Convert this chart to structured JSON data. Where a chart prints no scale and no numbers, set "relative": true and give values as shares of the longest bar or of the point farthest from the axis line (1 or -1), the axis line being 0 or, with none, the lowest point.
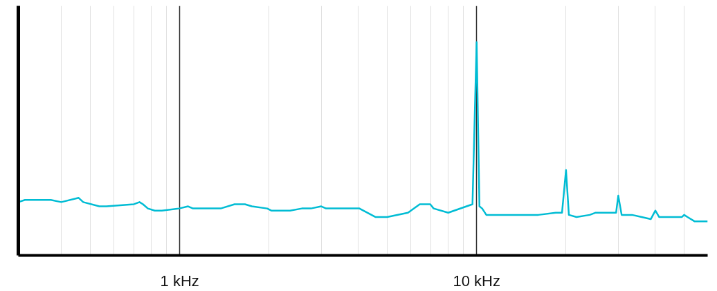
{
  "chart_data": {
    "type": "line",
    "relative": true,
    "log": "x",
    "grid": "x",
    "tick_labels": "x",
    "marker": "none",
    "line_style": "solid",
    "xlim": [
      0.286,
      60
    ],
    "xticks": [
      {
        "value": 0.4,
        "label": null
      },
      {
        "value": 0.5,
        "label": null
      },
      {
        "value": 0.6,
        "label": null
      },
      {
        "value": 0.7,
        "label": null
      },
      {
        "value": 0.8,
        "label": null
      },
      {
        "value": 0.9,
        "label": null
      },
      {
        "value": 1,
        "label": "1 kHz"
      },
      {
        "value": 2,
        "label": null
      },
      {
        "value": 3,
        "label": null
      },
      {
        "value": 4,
        "label": null
      },
      {
        "value": 5,
        "label": null
      },
      {
        "value": 6,
        "label": null
      },
      {
        "value": 7,
        "label": null
      },
      {
        "value": 8,
        "label": null
      },
      {
        "value": 9,
        "label": null
      },
      {
        "value": 10,
        "label": "10 kHz"
      },
      {
        "value": 20,
        "label": null
      },
      {
        "value": 30,
        "label": null
      },
      {
        "value": 40,
        "label": null
      },
      {
        "value": 50,
        "label": null
      }
    ],
    "x": [
      0.286,
      0.301,
      0.336,
      0.368,
      0.399,
      0.456,
      0.473,
      0.536,
      0.566,
      0.701,
      0.732,
      0.752,
      0.781,
      0.824,
      0.87,
      0.995,
      1.067,
      1.108,
      1.374,
      1.53,
      1.658,
      1.75,
      1.97,
      2.034,
      2.352,
      2.578,
      2.765,
      2.997,
      3.112,
      3.303,
      3.485,
      3.88,
      4.029,
      4.559,
      4.995,
      5.871,
      6.433,
      6.976,
      7.165,
      8.022,
      9.683,
      10,
      10.22,
      10.44,
      10.78,
      11.63,
      14.42,
      16.14,
      18.47,
      19.39,
      20,
      20.45,
      21.7,
      24.04,
      25.09,
      27.65,
      29.49,
      30,
      30.79,
      33.38,
      35.98,
      38.59,
      40,
      41.17,
      49.15,
      50,
      51.31,
      54.16,
      60
    ],
    "series": [
      {
        "color": "#00bcd4",
        "values": [
          0.25,
          0.26,
          0.26,
          0.26,
          0.25,
          0.27,
          0.25,
          0.23,
          0.23,
          0.24,
          0.25,
          0.24,
          0.22,
          0.21,
          0.21,
          0.22,
          0.23,
          0.22,
          0.22,
          0.24,
          0.24,
          0.23,
          0.22,
          0.21,
          0.21,
          0.22,
          0.22,
          0.23,
          0.22,
          0.22,
          0.22,
          0.22,
          0.22,
          0.18,
          0.18,
          0.2,
          0.24,
          0.24,
          0.22,
          0.2,
          0.24,
          1,
          0.23,
          0.22,
          0.19,
          0.19,
          0.19,
          0.19,
          0.2,
          0.2,
          0.4,
          0.19,
          0.18,
          0.19,
          0.2,
          0.2,
          0.2,
          0.28,
          0.19,
          0.19,
          0.18,
          0.17,
          0.21,
          0.18,
          0.18,
          0.19,
          0.18,
          0.16,
          0.16
        ]
      }
    ]
  }
}
